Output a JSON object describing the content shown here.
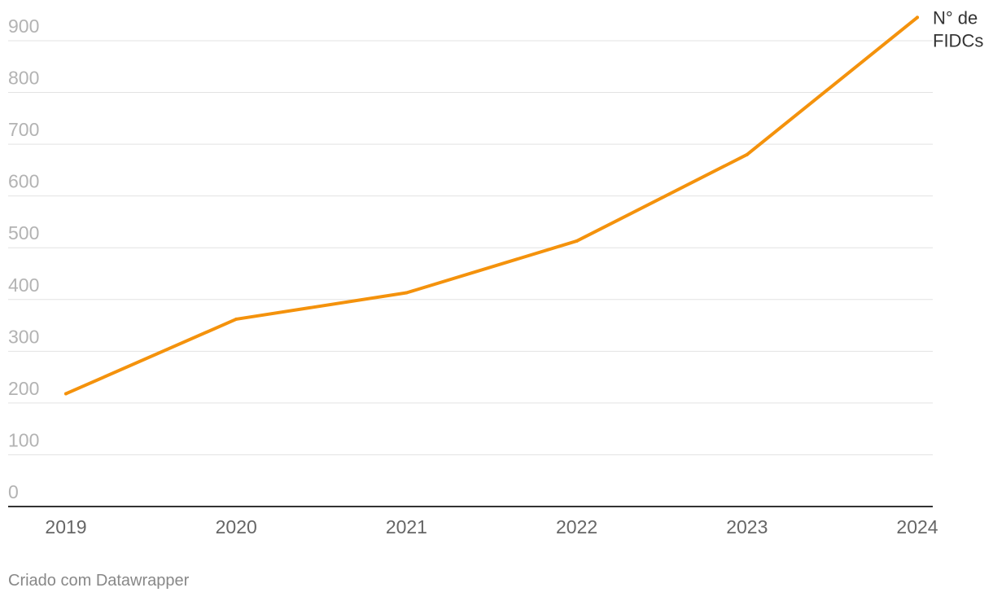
{
  "chart_data": {
    "type": "line",
    "title": "",
    "xlabel": "",
    "ylabel": "",
    "categories": [
      "2019",
      "2020",
      "2021",
      "2022",
      "2023",
      "2024"
    ],
    "series": [
      {
        "name_lines": [
          "N° de",
          "FIDCs"
        ],
        "values": [
          218,
          362,
          413,
          513,
          680,
          945
        ],
        "color": "#f4920c"
      }
    ],
    "ylim": [
      0,
      900
    ],
    "yticks": [
      0,
      100,
      200,
      300,
      400,
      500,
      600,
      700,
      800,
      900
    ],
    "grid": true
  },
  "footer": {
    "credit": "Criado com Datawrapper"
  }
}
